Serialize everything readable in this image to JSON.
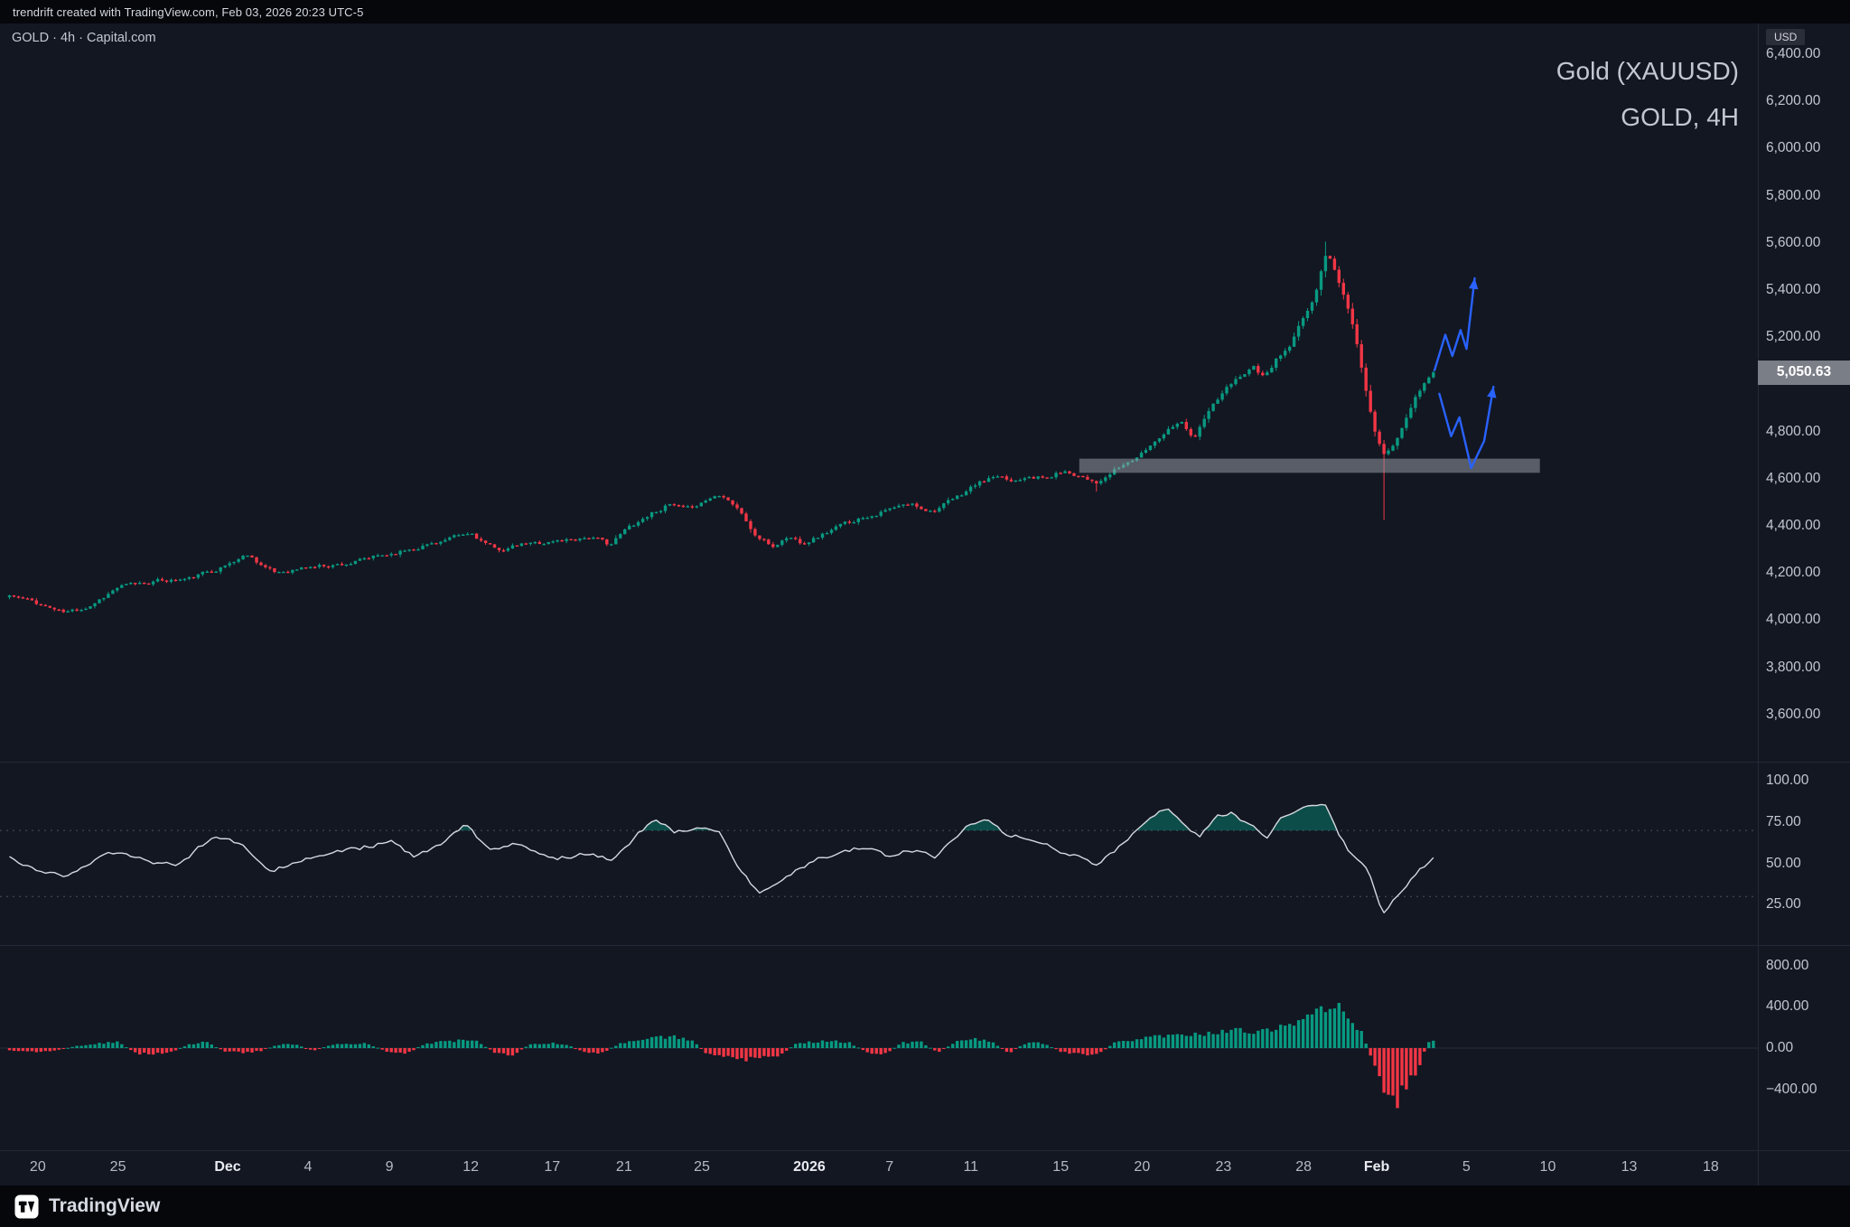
{
  "meta": {
    "attribution": "trendrift created with TradingView.com, Feb 03, 2026 20:23 UTC-5",
    "brand": "TradingView"
  },
  "chart": {
    "symbol_line": "GOLD · 4h · Capital.com",
    "watermark_title": "Gold (XAUUSD)",
    "watermark_subtitle": "GOLD, 4H",
    "axis_currency_label": "USD",
    "last_price": "5,050.63"
  },
  "chart_data": {
    "type": "candlestick",
    "title": "Gold (XAUUSD)",
    "subtitle": "GOLD, 4H",
    "symbol": "GOLD",
    "timeframe": "4h",
    "source": "Capital.com",
    "unit": "USD",
    "grid": "off",
    "last_price_value": 5050.63,
    "price_axis": {
      "visible_min": 3400,
      "visible_max": 6530,
      "ticks": [
        {
          "v": 6400,
          "label": "6,400.00"
        },
        {
          "v": 6200,
          "label": "6,200.00"
        },
        {
          "v": 6000,
          "label": "6,000.00"
        },
        {
          "v": 5800,
          "label": "5,800.00"
        },
        {
          "v": 5600,
          "label": "5,600.00"
        },
        {
          "v": 5400,
          "label": "5,400.00"
        },
        {
          "v": 5200,
          "label": "5,200.00"
        },
        {
          "v": 5000,
          "label": "5,000.00"
        },
        {
          "v": 4800,
          "label": "4,800.00"
        },
        {
          "v": 4600,
          "label": "4,600.00"
        },
        {
          "v": 4400,
          "label": "4,400.00"
        },
        {
          "v": 4200,
          "label": "4,200.00"
        },
        {
          "v": 4000,
          "label": "4,000.00"
        },
        {
          "v": 3800,
          "label": "3,800.00"
        },
        {
          "v": 3600,
          "label": "3,600.00"
        }
      ]
    },
    "time_axis": {
      "ticks": [
        {
          "f": 0.0215,
          "label": "20"
        },
        {
          "f": 0.0671,
          "label": "25"
        },
        {
          "f": 0.1295,
          "label": "Dec",
          "major": true
        },
        {
          "f": 0.1752,
          "label": "4"
        },
        {
          "f": 0.2215,
          "label": "9"
        },
        {
          "f": 0.2678,
          "label": "12"
        },
        {
          "f": 0.3141,
          "label": "17"
        },
        {
          "f": 0.355,
          "label": "21"
        },
        {
          "f": 0.3993,
          "label": "25"
        },
        {
          "f": 0.4604,
          "label": "2026",
          "major": true
        },
        {
          "f": 0.506,
          "label": "7"
        },
        {
          "f": 0.5523,
          "label": "11"
        },
        {
          "f": 0.6034,
          "label": "15"
        },
        {
          "f": 0.6497,
          "label": "20"
        },
        {
          "f": 0.696,
          "label": "23"
        },
        {
          "f": 0.7416,
          "label": "28"
        },
        {
          "f": 0.7832,
          "label": "Feb",
          "major": true
        },
        {
          "f": 0.8342,
          "label": "5"
        },
        {
          "f": 0.8805,
          "label": "10"
        },
        {
          "f": 0.9268,
          "label": "13"
        },
        {
          "f": 0.9732,
          "label": "18"
        }
      ]
    },
    "candles": {
      "count": 318,
      "f_start": 0.0054,
      "f_end": 0.8154,
      "noise": {
        "seed": 11,
        "body": 9,
        "wick": 7
      },
      "close_waypoints": [
        [
          0.0054,
          4105
        ],
        [
          0.0201,
          4075
        ],
        [
          0.0369,
          4030
        ],
        [
          0.0503,
          4060
        ],
        [
          0.0671,
          4140
        ],
        [
          0.0872,
          4165
        ],
        [
          0.1074,
          4175
        ],
        [
          0.1275,
          4230
        ],
        [
          0.1409,
          4280
        ],
        [
          0.1557,
          4200
        ],
        [
          0.1752,
          4225
        ],
        [
          0.2013,
          4245
        ],
        [
          0.2215,
          4280
        ],
        [
          0.2416,
          4320
        ],
        [
          0.2685,
          4365
        ],
        [
          0.2819,
          4295
        ],
        [
          0.2987,
          4320
        ],
        [
          0.3154,
          4335
        ],
        [
          0.3356,
          4355
        ],
        [
          0.347,
          4320
        ],
        [
          0.357,
          4390
        ],
        [
          0.3705,
          4455
        ],
        [
          0.3805,
          4490
        ],
        [
          0.3906,
          4465
        ],
        [
          0.4027,
          4515
        ],
        [
          0.4107,
          4540
        ],
        [
          0.4195,
          4480
        ],
        [
          0.4295,
          4360
        ],
        [
          0.4396,
          4310
        ],
        [
          0.4483,
          4355
        ],
        [
          0.4564,
          4330
        ],
        [
          0.4664,
          4360
        ],
        [
          0.4779,
          4400
        ],
        [
          0.4913,
          4440
        ],
        [
          0.5067,
          4470
        ],
        [
          0.5181,
          4490
        ],
        [
          0.5302,
          4465
        ],
        [
          0.545,
          4520
        ],
        [
          0.5537,
          4570
        ],
        [
          0.5651,
          4605
        ],
        [
          0.5758,
          4585
        ],
        [
          0.5852,
          4620
        ],
        [
          0.5953,
          4600
        ],
        [
          0.604,
          4630
        ],
        [
          0.6154,
          4615
        ],
        [
          0.6255,
          4585
        ],
        [
          0.6356,
          4640
        ],
        [
          0.6497,
          4705
        ],
        [
          0.6611,
          4790
        ],
        [
          0.6711,
          4855
        ],
        [
          0.6792,
          4775
        ],
        [
          0.6893,
          4905
        ],
        [
          0.698,
          4980
        ],
        [
          0.706,
          5040
        ],
        [
          0.7128,
          5080
        ],
        [
          0.7195,
          5025
        ],
        [
          0.7262,
          5105
        ],
        [
          0.7336,
          5155
        ],
        [
          0.7416,
          5280
        ],
        [
          0.7483,
          5380
        ],
        [
          0.7544,
          5560
        ],
        [
          0.7584,
          5510
        ],
        [
          0.7624,
          5420
        ],
        [
          0.7678,
          5300
        ],
        [
          0.7732,
          5120
        ],
        [
          0.7785,
          4930
        ],
        [
          0.7839,
          4760
        ],
        [
          0.7879,
          4700
        ],
        [
          0.7926,
          4745
        ],
        [
          0.7987,
          4830
        ],
        [
          0.8047,
          4930
        ],
        [
          0.8107,
          5000
        ],
        [
          0.8154,
          5050.63
        ]
      ],
      "spikes": [
        {
          "f": 0.6242,
          "type": "low",
          "price": 4545
        },
        {
          "f": 0.754,
          "type": "high",
          "price": 5605
        },
        {
          "f": 0.7866,
          "type": "low",
          "price": 4425
        }
      ]
    },
    "support_zone": {
      "f_start": 0.614,
      "f_end": 0.876,
      "price_top": 4685,
      "price_bottom": 4625
    },
    "projections": [
      {
        "name": "bullish-continuation-arrow",
        "points": [
          [
            0.8161,
            5060
          ],
          [
            0.8222,
            5210
          ],
          [
            0.8262,
            5120
          ],
          [
            0.8309,
            5230
          ],
          [
            0.8343,
            5150
          ],
          [
            0.8389,
            5450
          ]
        ]
      },
      {
        "name": "pullback-then-up-arrow",
        "points": [
          [
            0.8188,
            4960
          ],
          [
            0.8255,
            4780
          ],
          [
            0.8302,
            4860
          ],
          [
            0.8369,
            4645
          ],
          [
            0.8443,
            4760
          ],
          [
            0.8496,
            4990
          ]
        ]
      }
    ],
    "rsi_pane": {
      "range_min": 0,
      "range_max": 110,
      "fill_above": 70,
      "levels": [
        70,
        30
      ],
      "ticks": [
        {
          "v": 100,
          "label": "100.00"
        },
        {
          "v": 75,
          "label": "75.00"
        },
        {
          "v": 50,
          "label": "50.00"
        },
        {
          "v": 25,
          "label": "25.00"
        }
      ],
      "waypoints": [
        [
          0.0054,
          53
        ],
        [
          0.0201,
          46
        ],
        [
          0.0369,
          42
        ],
        [
          0.0604,
          57
        ],
        [
          0.0805,
          52
        ],
        [
          0.1007,
          49
        ],
        [
          0.1208,
          66
        ],
        [
          0.1376,
          62
        ],
        [
          0.1544,
          46
        ],
        [
          0.1711,
          52
        ],
        [
          0.1879,
          56
        ],
        [
          0.2047,
          59
        ],
        [
          0.2215,
          64
        ],
        [
          0.2349,
          54
        ],
        [
          0.2497,
          60
        ],
        [
          0.2651,
          74
        ],
        [
          0.2785,
          57
        ],
        [
          0.2953,
          62
        ],
        [
          0.3154,
          53
        ],
        [
          0.3356,
          57
        ],
        [
          0.349,
          52
        ],
        [
          0.3644,
          69
        ],
        [
          0.3738,
          77
        ],
        [
          0.3839,
          68
        ],
        [
          0.396,
          72
        ],
        [
          0.4094,
          70
        ],
        [
          0.4195,
          49
        ],
        [
          0.4309,
          32
        ],
        [
          0.4416,
          37
        ],
        [
          0.451,
          44
        ],
        [
          0.4644,
          52
        ],
        [
          0.4779,
          57
        ],
        [
          0.4913,
          60
        ],
        [
          0.5047,
          55
        ],
        [
          0.5181,
          59
        ],
        [
          0.5315,
          53
        ],
        [
          0.5503,
          72
        ],
        [
          0.5611,
          75
        ],
        [
          0.5718,
          68
        ],
        [
          0.5839,
          66
        ],
        [
          0.5973,
          60
        ],
        [
          0.6107,
          55
        ],
        [
          0.6242,
          49
        ],
        [
          0.6389,
          62
        ],
        [
          0.6544,
          79
        ],
        [
          0.6644,
          83
        ],
        [
          0.6745,
          71
        ],
        [
          0.6826,
          66
        ],
        [
          0.6926,
          79
        ],
        [
          0.702,
          81
        ],
        [
          0.7114,
          72
        ],
        [
          0.7215,
          66
        ],
        [
          0.7295,
          78
        ],
        [
          0.7383,
          81
        ],
        [
          0.7463,
          85
        ],
        [
          0.753,
          88
        ],
        [
          0.7597,
          72
        ],
        [
          0.7664,
          59
        ],
        [
          0.7732,
          52
        ],
        [
          0.7799,
          42
        ],
        [
          0.7866,
          21
        ],
        [
          0.7933,
          29
        ],
        [
          0.8,
          36
        ],
        [
          0.8067,
          45
        ],
        [
          0.8154,
          53
        ]
      ]
    },
    "hist_pane": {
      "range_min": -990,
      "range_max": 990,
      "ticks": [
        {
          "v": 800,
          "label": "800.00"
        },
        {
          "v": 400,
          "label": "400.00"
        },
        {
          "v": 0,
          "label": "0.00"
        },
        {
          "v": -400,
          "label": "−400.00"
        }
      ],
      "waypoints": [
        [
          0.0054,
          -20
        ],
        [
          0.0168,
          -35
        ],
        [
          0.0302,
          -30
        ],
        [
          0.0436,
          20
        ],
        [
          0.057,
          45
        ],
        [
          0.0671,
          60
        ],
        [
          0.0772,
          -50
        ],
        [
          0.0872,
          -60
        ],
        [
          0.0973,
          -40
        ],
        [
          0.1074,
          40
        ],
        [
          0.1174,
          55
        ],
        [
          0.1275,
          -30
        ],
        [
          0.1376,
          -45
        ],
        [
          0.1477,
          -30
        ],
        [
          0.1577,
          30
        ],
        [
          0.1678,
          40
        ],
        [
          0.1779,
          -25
        ],
        [
          0.1879,
          30
        ],
        [
          0.198,
          40
        ],
        [
          0.2081,
          50
        ],
        [
          0.2215,
          -40
        ],
        [
          0.2315,
          -55
        ],
        [
          0.2416,
          45
        ],
        [
          0.2517,
          60
        ],
        [
          0.2617,
          75
        ],
        [
          0.2718,
          60
        ],
        [
          0.2819,
          -50
        ],
        [
          0.2919,
          -65
        ],
        [
          0.302,
          40
        ],
        [
          0.3121,
          50
        ],
        [
          0.3221,
          35
        ],
        [
          0.3322,
          -40
        ],
        [
          0.3423,
          -50
        ],
        [
          0.3523,
          45
        ],
        [
          0.3624,
          70
        ],
        [
          0.3725,
          95
        ],
        [
          0.3826,
          110
        ],
        [
          0.3926,
          85
        ],
        [
          0.4027,
          -60
        ],
        [
          0.4128,
          -90
        ],
        [
          0.4228,
          -110
        ],
        [
          0.4329,
          -95
        ],
        [
          0.443,
          -70
        ],
        [
          0.453,
          40
        ],
        [
          0.4631,
          60
        ],
        [
          0.4732,
          70
        ],
        [
          0.4832,
          55
        ],
        [
          0.4933,
          -45
        ],
        [
          0.5034,
          -55
        ],
        [
          0.5134,
          50
        ],
        [
          0.5235,
          65
        ],
        [
          0.5336,
          -45
        ],
        [
          0.5436,
          60
        ],
        [
          0.5537,
          85
        ],
        [
          0.5638,
          70
        ],
        [
          0.5738,
          -50
        ],
        [
          0.5839,
          55
        ],
        [
          0.594,
          45
        ],
        [
          0.604,
          -40
        ],
        [
          0.6141,
          -55
        ],
        [
          0.6242,
          -65
        ],
        [
          0.6342,
          50
        ],
        [
          0.6443,
          80
        ],
        [
          0.6544,
          110
        ],
        [
          0.6644,
          130
        ],
        [
          0.6745,
          110
        ],
        [
          0.6846,
          140
        ],
        [
          0.6946,
          160
        ],
        [
          0.7047,
          180
        ],
        [
          0.7148,
          150
        ],
        [
          0.7248,
          200
        ],
        [
          0.7349,
          240
        ],
        [
          0.7416,
          280
        ],
        [
          0.7483,
          340
        ],
        [
          0.755,
          420
        ],
        [
          0.7604,
          460
        ],
        [
          0.7651,
          380
        ],
        [
          0.7705,
          260
        ],
        [
          0.7752,
          120
        ],
        [
          0.7799,
          -80
        ],
        [
          0.7839,
          -250
        ],
        [
          0.7886,
          -420
        ],
        [
          0.794,
          -500
        ],
        [
          0.7987,
          -430
        ],
        [
          0.8034,
          -300
        ],
        [
          0.8081,
          -150
        ],
        [
          0.8121,
          60
        ],
        [
          0.8154,
          80
        ]
      ]
    },
    "colors": {
      "up": "#089981",
      "down": "#f23645",
      "rsi_line": "#d6d9e0",
      "rsi_fill": "rgba(8,153,129,0.42)",
      "projection": "#2962ff",
      "zone": "rgba(158,163,173,0.5)",
      "last_price_label_bg": "#7a7e87",
      "background": "#121722"
    }
  }
}
